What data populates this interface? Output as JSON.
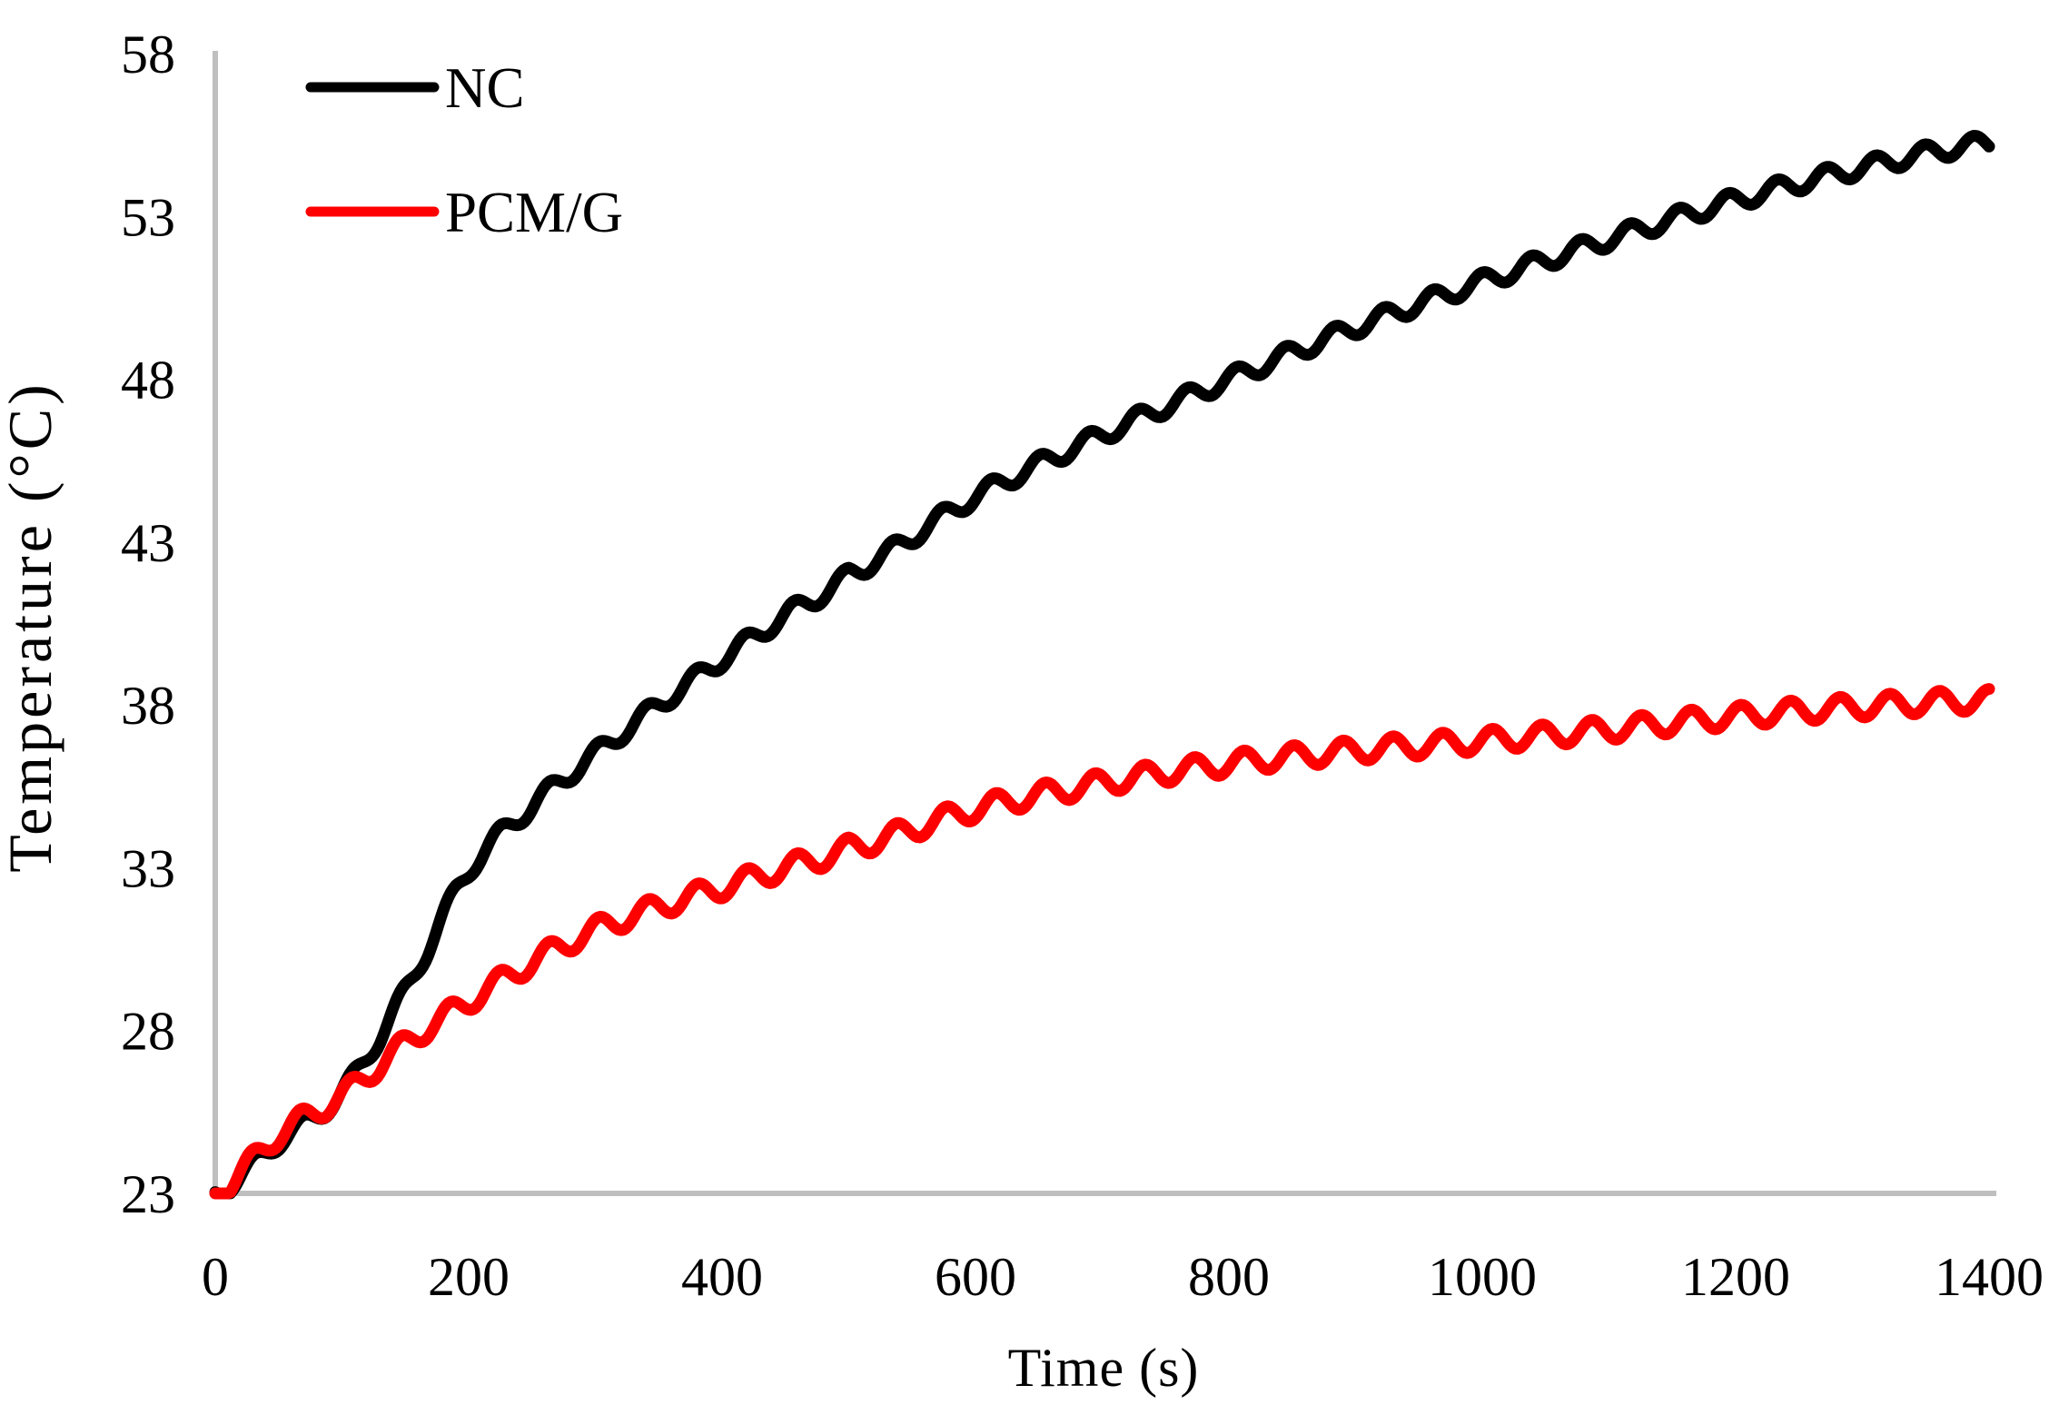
{
  "figure": {
    "background": "#FFFFFF",
    "axis_color": "#BFBFBF",
    "text_color": "#000000"
  },
  "chart_data": {
    "type": "line",
    "title": "",
    "xlabel": "Time (s)",
    "ylabel": "Temperature (°C)",
    "xlim": [
      0,
      1400
    ],
    "ylim": [
      23,
      58
    ],
    "x_ticks": [
      0,
      200,
      400,
      600,
      800,
      1000,
      1200,
      1400
    ],
    "y_ticks": [
      58,
      53,
      48,
      43,
      38,
      33,
      28,
      23
    ],
    "grid": false,
    "legend_position": "inside-top-left",
    "oscillation_note": "both traces ripple ~±0.3 °C with ~39 s period (cyclic heating), superimposed on a rising trend",
    "series": [
      {
        "name": "NC",
        "color": "#000000",
        "line_width": 13,
        "ripple": {
          "amplitude": 0.28,
          "period_s": 38.8,
          "phase_cycles": -0.523
        },
        "points": [
          [
            0,
            23.0
          ],
          [
            50,
            24.6
          ],
          [
            100,
            26.1
          ],
          [
            150,
            29.2
          ],
          [
            200,
            32.9
          ],
          [
            250,
            34.9
          ],
          [
            300,
            36.5
          ],
          [
            350,
            38.0
          ],
          [
            400,
            39.4
          ],
          [
            450,
            40.75
          ],
          [
            500,
            42.0
          ],
          [
            600,
            44.4
          ],
          [
            700,
            46.3
          ],
          [
            800,
            48.0
          ],
          [
            900,
            49.6
          ],
          [
            1000,
            51.0
          ],
          [
            1100,
            52.3
          ],
          [
            1200,
            53.5
          ],
          [
            1300,
            54.5
          ],
          [
            1400,
            55.25
          ]
        ]
      },
      {
        "name": "PCM/G",
        "color": "#FF0000",
        "line_width": 13,
        "ripple": {
          "amplitude": 0.34,
          "period_s": 39.2,
          "phase_cycles": -0.464
        },
        "points": [
          [
            0,
            23.0
          ],
          [
            50,
            24.8
          ],
          [
            100,
            26.0
          ],
          [
            150,
            27.6
          ],
          [
            200,
            28.9
          ],
          [
            250,
            30.1
          ],
          [
            300,
            31.1
          ],
          [
            350,
            31.8
          ],
          [
            400,
            32.4
          ],
          [
            450,
            33.0
          ],
          [
            500,
            33.6
          ],
          [
            600,
            34.8
          ],
          [
            700,
            35.6
          ],
          [
            800,
            36.2
          ],
          [
            900,
            36.6
          ],
          [
            1000,
            36.9
          ],
          [
            1100,
            37.25
          ],
          [
            1200,
            37.65
          ],
          [
            1300,
            37.95
          ],
          [
            1400,
            38.15
          ]
        ]
      }
    ]
  }
}
